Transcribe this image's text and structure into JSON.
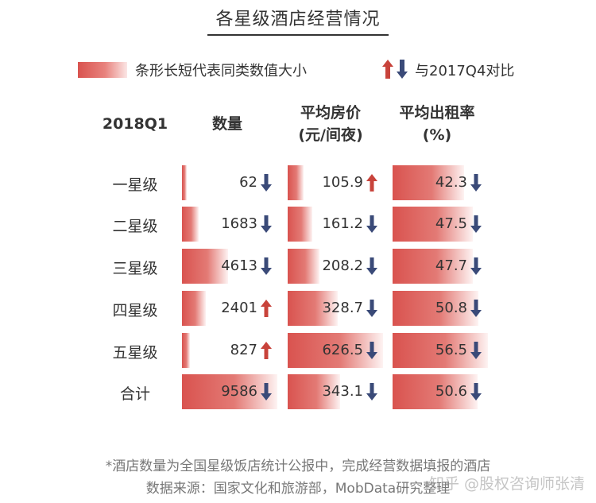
{
  "title": "各星级酒店经营情况",
  "legend": {
    "bar_text": "条形长短代表同类数值大小",
    "arrow_text": "与2017Q4对比"
  },
  "headers": {
    "period": "2018Q1",
    "count": "数量",
    "price_line1": "平均房价",
    "price_line2": "(元/间夜)",
    "occ_line1": "平均出租率",
    "occ_line2": "(%)"
  },
  "colors": {
    "bar": "#d9534f",
    "up": "#c8433b",
    "down": "#3a4a78"
  },
  "chart_data": {
    "type": "table",
    "title": "各星级酒店经营情况",
    "rows": [
      {
        "label": "一星级",
        "count": 62,
        "count_dir": "down",
        "price": 105.9,
        "price_dir": "up",
        "occ": 42.3,
        "occ_dir": "down"
      },
      {
        "label": "二星级",
        "count": 1683,
        "count_dir": "down",
        "price": 161.2,
        "price_dir": "down",
        "occ": 47.5,
        "occ_dir": "down"
      },
      {
        "label": "三星级",
        "count": 4613,
        "count_dir": "down",
        "price": 208.2,
        "price_dir": "down",
        "occ": 47.7,
        "occ_dir": "down"
      },
      {
        "label": "四星级",
        "count": 2401,
        "count_dir": "up",
        "price": 328.7,
        "price_dir": "down",
        "occ": 50.8,
        "occ_dir": "down"
      },
      {
        "label": "五星级",
        "count": 827,
        "count_dir": "up",
        "price": 626.5,
        "price_dir": "down",
        "occ": 56.5,
        "occ_dir": "down"
      },
      {
        "label": "合计",
        "count": 9586,
        "count_dir": "down",
        "price": 343.1,
        "price_dir": "down",
        "occ": 50.6,
        "occ_dir": "down"
      }
    ],
    "value_text": {
      "count": [
        "62",
        "1683",
        "4613",
        "2401",
        "827",
        "9586"
      ],
      "price": [
        "105.9",
        "161.2",
        "208.2",
        "328.7",
        "626.5",
        "343.1"
      ],
      "occ": [
        "42.3",
        "47.5",
        "47.7",
        "50.8",
        "56.5",
        "50.6"
      ]
    }
  },
  "footer": {
    "note": "*酒店数量为全国星级饭店统计公报中，完成经营数据填报的酒店",
    "source": "数据来源：国家文化和旅游部，MobData研究整理"
  },
  "watermark": "知乎 @股权咨询师张清"
}
